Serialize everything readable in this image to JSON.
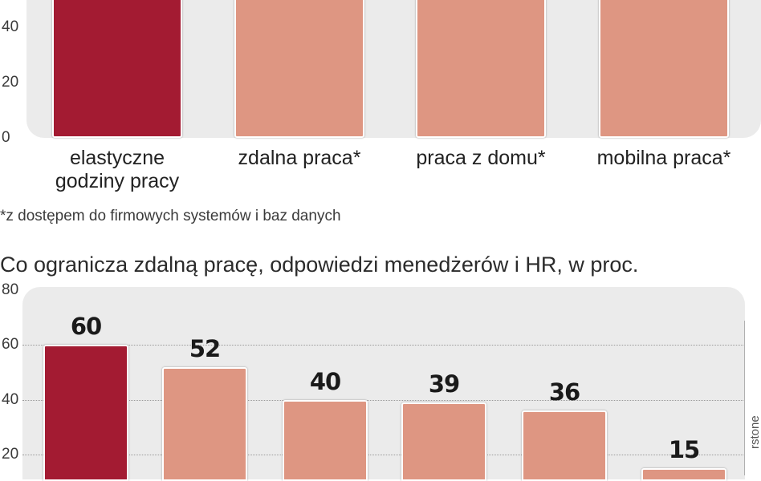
{
  "chart_data": [
    {
      "type": "bar",
      "categories": [
        "elastyczne godziny pracy",
        "zdalna praca*",
        "praca z domu*",
        "mobilna praca*"
      ],
      "category_lines": [
        [
          "elastyczne",
          "godziny pracy"
        ],
        [
          "zdalna praca*"
        ],
        [
          "praca z domu*"
        ],
        [
          "mobilna praca*"
        ]
      ],
      "values": [
        null,
        null,
        null,
        null
      ],
      "colors": [
        "#a31b32",
        "#de9682",
        "#de9682",
        "#de9682"
      ],
      "yticks": [
        "0",
        "20",
        "40"
      ],
      "ylim": [
        0,
        50
      ],
      "footnote": "*z dostępem do firmowych systemów i baz danych"
    },
    {
      "type": "bar",
      "title": "Co ogranicza zdalną pracę, odpowiedzi menedżerów i HR, w proc.",
      "values": [
        60,
        52,
        40,
        39,
        36,
        15
      ],
      "value_labels": [
        "60",
        "52",
        "40",
        "39",
        "36",
        "15"
      ],
      "colors": [
        "#a31b32",
        "#de9682",
        "#de9682",
        "#de9682",
        "#de9682",
        "#de9682"
      ],
      "yticks": [
        "20",
        "40",
        "60",
        "80"
      ],
      "ylim": [
        0,
        80
      ]
    }
  ],
  "source": "rstone"
}
